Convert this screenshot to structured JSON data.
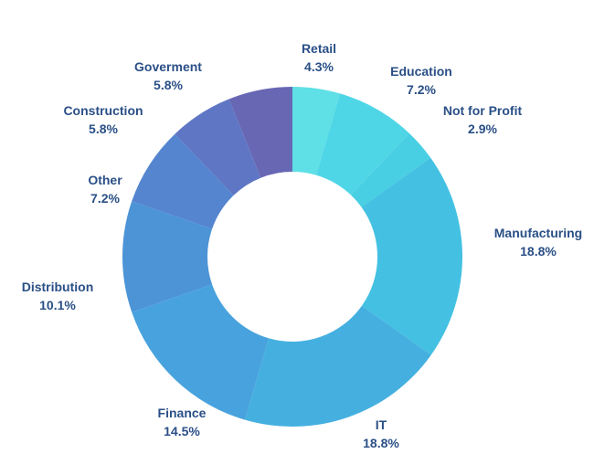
{
  "chart_data": {
    "type": "pie",
    "donut": true,
    "slices": [
      {
        "label": "Retail",
        "value": 4.3,
        "display": "4.3%",
        "color": "#5ee0e6"
      },
      {
        "label": "Education",
        "value": 7.2,
        "display": "7.2%",
        "color": "#4fd6e6"
      },
      {
        "label": "Not for Profit",
        "value": 2.9,
        "display": "2.9%",
        "color": "#48cfe3"
      },
      {
        "label": "Manufacturing",
        "value": 18.8,
        "display": "18.8%",
        "color": "#44c1e2"
      },
      {
        "label": "IT",
        "value": 18.8,
        "display": "18.8%",
        "color": "#45b0e0"
      },
      {
        "label": "Finance",
        "value": 14.5,
        "display": "14.5%",
        "color": "#48a2dd"
      },
      {
        "label": "Distribution",
        "value": 10.1,
        "display": "10.1%",
        "color": "#4c94d6"
      },
      {
        "label": "Other",
        "value": 7.2,
        "display": "7.2%",
        "color": "#5585cf"
      },
      {
        "label": "Construction",
        "value": 5.8,
        "display": "5.8%",
        "color": "#5f76c4"
      },
      {
        "label": "Goverment",
        "value": 5.8,
        "display": "5.8%",
        "color": "#6767b4"
      }
    ]
  }
}
